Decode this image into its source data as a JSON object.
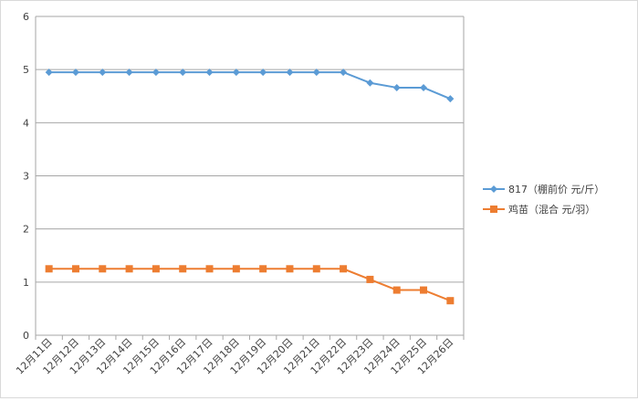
{
  "chart_data": {
    "type": "line",
    "title": "",
    "xlabel": "",
    "ylabel": "",
    "categories": [
      "12月11日",
      "12月12日",
      "12月13日",
      "12月14日",
      "12月15日",
      "12月16日",
      "12月17日",
      "12月18日",
      "12月19日",
      "12月20日",
      "12月21日",
      "12月22日",
      "12月23日",
      "12月24日",
      "12月25日",
      "12月26日"
    ],
    "ylim": [
      0,
      6
    ],
    "yticks": [
      "0",
      "1",
      "2",
      "3",
      "4",
      "5",
      "6"
    ],
    "grid": true,
    "legend_position": "right",
    "series": [
      {
        "name": "817（棚前价 元/斤）",
        "color": "#5b9bd5",
        "marker": "diamond",
        "values": [
          4.95,
          4.95,
          4.95,
          4.95,
          4.95,
          4.95,
          4.95,
          4.95,
          4.95,
          4.95,
          4.95,
          4.95,
          4.75,
          4.66,
          4.66,
          4.45
        ]
      },
      {
        "name": "鸡苗（混合 元/羽）",
        "color": "#ed7d31",
        "marker": "square",
        "values": [
          1.25,
          1.25,
          1.25,
          1.25,
          1.25,
          1.25,
          1.25,
          1.25,
          1.25,
          1.25,
          1.25,
          1.25,
          1.05,
          0.85,
          0.85,
          0.65
        ]
      }
    ]
  }
}
